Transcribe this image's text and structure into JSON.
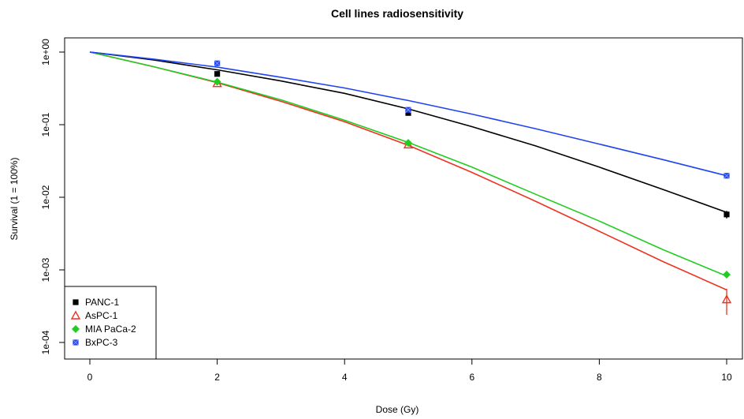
{
  "chart_data": {
    "type": "scatter",
    "title": "Cell lines radiosensitivity",
    "xlabel": "Dose (Gy)",
    "ylabel": "Survival (1 = 100%)",
    "xlim": [
      0,
      10
    ],
    "ylim_log10": [
      -4,
      0
    ],
    "y_scale": "log",
    "x_ticks": [
      0,
      2,
      4,
      6,
      8,
      10
    ],
    "x_tick_labels": [
      "0",
      "2",
      "4",
      "6",
      "8",
      "10"
    ],
    "y_ticks": [
      1,
      0.1,
      0.01,
      0.001,
      0.0001
    ],
    "y_tick_labels": [
      "1e+00",
      "1e-01",
      "1e-02",
      "1e-03",
      "1e-04"
    ],
    "grid": false,
    "legend_position": "bottom-left",
    "series": [
      {
        "name": "PANC-1",
        "color": "#000000",
        "marker": "square",
        "points": [
          {
            "x": 2,
            "y": 0.5
          },
          {
            "x": 5,
            "y": 0.145
          },
          {
            "x": 10,
            "y": 0.0058
          }
        ],
        "error_bars": [
          {
            "x": 10,
            "low": 0.0051,
            "high": 0.0065
          }
        ],
        "fit_curve": [
          {
            "x": 0,
            "y": 1.0
          },
          {
            "x": 1,
            "y": 0.78
          },
          {
            "x": 2,
            "y": 0.57
          },
          {
            "x": 3,
            "y": 0.4
          },
          {
            "x": 4,
            "y": 0.27
          },
          {
            "x": 5,
            "y": 0.165
          },
          {
            "x": 6,
            "y": 0.094
          },
          {
            "x": 7,
            "y": 0.051
          },
          {
            "x": 8,
            "y": 0.026
          },
          {
            "x": 9,
            "y": 0.0128
          },
          {
            "x": 10,
            "y": 0.0062
          }
        ]
      },
      {
        "name": "AsPC-1",
        "color": "#ee3322",
        "marker": "triangle-open",
        "points": [
          {
            "x": 2,
            "y": 0.37
          },
          {
            "x": 5,
            "y": 0.053
          },
          {
            "x": 10,
            "y": 0.00039
          }
        ],
        "error_bars": [
          {
            "x": 10,
            "low": 0.00024,
            "high": 0.00055
          }
        ],
        "fit_curve": [
          {
            "x": 0,
            "y": 1.0
          },
          {
            "x": 1,
            "y": 0.63
          },
          {
            "x": 2,
            "y": 0.38
          },
          {
            "x": 3,
            "y": 0.21
          },
          {
            "x": 4,
            "y": 0.11
          },
          {
            "x": 5,
            "y": 0.052
          },
          {
            "x": 6,
            "y": 0.022
          },
          {
            "x": 7,
            "y": 0.0088
          },
          {
            "x": 8,
            "y": 0.0034
          },
          {
            "x": 9,
            "y": 0.0013
          },
          {
            "x": 10,
            "y": 0.00053
          }
        ]
      },
      {
        "name": "MIA PaCa-2",
        "color": "#22cc22",
        "marker": "diamond",
        "points": [
          {
            "x": 2,
            "y": 0.39
          },
          {
            "x": 5,
            "y": 0.056
          },
          {
            "x": 10,
            "y": 0.00086
          }
        ],
        "error_bars": [],
        "fit_curve": [
          {
            "x": 0,
            "y": 1.0
          },
          {
            "x": 1,
            "y": 0.63
          },
          {
            "x": 2,
            "y": 0.385
          },
          {
            "x": 3,
            "y": 0.22
          },
          {
            "x": 4,
            "y": 0.115
          },
          {
            "x": 5,
            "y": 0.057
          },
          {
            "x": 6,
            "y": 0.026
          },
          {
            "x": 7,
            "y": 0.011
          },
          {
            "x": 8,
            "y": 0.0047
          },
          {
            "x": 9,
            "y": 0.0019
          },
          {
            "x": 10,
            "y": 0.00082
          }
        ]
      },
      {
        "name": "BxPC-3",
        "color": "#2244ee",
        "marker": "square-crossed",
        "points": [
          {
            "x": 2,
            "y": 0.7
          },
          {
            "x": 5,
            "y": 0.16
          },
          {
            "x": 10,
            "y": 0.0198
          }
        ],
        "error_bars": [],
        "fit_curve": [
          {
            "x": 0,
            "y": 1.0
          },
          {
            "x": 1,
            "y": 0.8
          },
          {
            "x": 2,
            "y": 0.62
          },
          {
            "x": 3,
            "y": 0.45
          },
          {
            "x": 4,
            "y": 0.32
          },
          {
            "x": 5,
            "y": 0.215
          },
          {
            "x": 6,
            "y": 0.14
          },
          {
            "x": 7,
            "y": 0.088
          },
          {
            "x": 8,
            "y": 0.054
          },
          {
            "x": 9,
            "y": 0.033
          },
          {
            "x": 10,
            "y": 0.0198
          }
        ]
      }
    ]
  }
}
